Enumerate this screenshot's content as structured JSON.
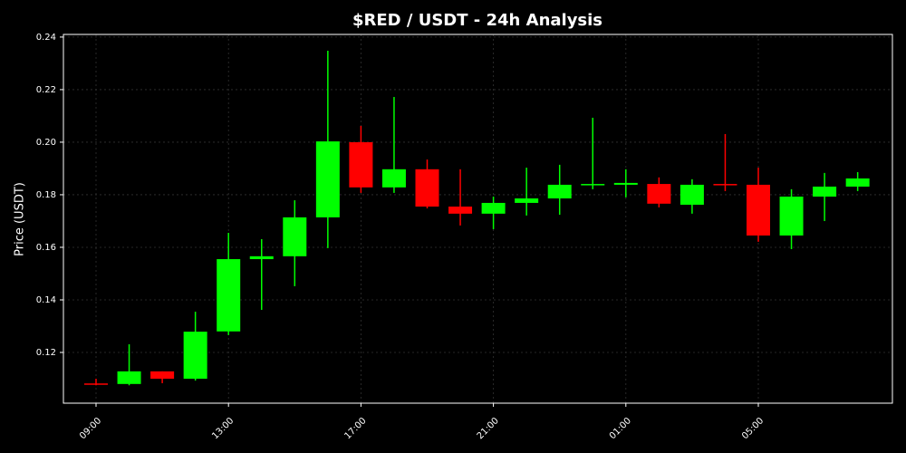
{
  "chart_data": {
    "type": "candlestick",
    "title": "$RED / USDT - 24h Analysis",
    "y_label": "Price (USDT)",
    "categories": [
      "09:00",
      null,
      null,
      null,
      "13:00",
      null,
      null,
      null,
      "17:00",
      null,
      null,
      null,
      "21:00",
      null,
      null,
      null,
      "01:00",
      null,
      null,
      null,
      "05:00",
      null,
      null,
      null
    ],
    "open": [
      0.1082,
      0.108,
      0.1128,
      0.11,
      0.128,
      0.1555,
      0.1566,
      0.1714,
      0.2,
      0.1828,
      0.1897,
      0.1755,
      0.1728,
      0.1769,
      0.1786,
      0.1838,
      0.1838,
      0.1841,
      0.1762,
      0.1841,
      0.1838,
      0.1645,
      0.1793,
      0.1831
    ],
    "high": [
      0.11,
      0.1231,
      0.1128,
      0.1355,
      0.1655,
      0.1631,
      0.1779,
      0.2348,
      0.2062,
      0.2172,
      0.1934,
      0.1897,
      0.1793,
      0.1903,
      0.1914,
      0.2093,
      0.1897,
      0.1866,
      0.1859,
      0.2031,
      0.1903,
      0.1821,
      0.1883,
      0.1886
    ],
    "low": [
      0.1075,
      0.1075,
      0.1083,
      0.1093,
      0.1266,
      0.1362,
      0.1452,
      0.1597,
      0.1807,
      0.1807,
      0.1748,
      0.1683,
      0.1669,
      0.1721,
      0.1724,
      0.1821,
      0.179,
      0.1752,
      0.1728,
      0.1814,
      0.1621,
      0.1593,
      0.17,
      0.1814
    ],
    "close": [
      0.108,
      0.1128,
      0.11,
      0.1279,
      0.1555,
      0.1566,
      0.1714,
      0.2003,
      0.1828,
      0.1897,
      0.1755,
      0.1728,
      0.1769,
      0.1786,
      0.1838,
      0.1841,
      0.1845,
      0.1766,
      0.1838,
      0.1838,
      0.1645,
      0.1793,
      0.1831,
      0.1862
    ],
    "up_color": "#00ff00",
    "down_color": "#ff0000",
    "ylim": [
      0.1007,
      0.241
    ],
    "yticks": [
      0.12,
      0.14,
      0.16,
      0.18,
      {
        "value": 0.2,
        "label": "0.20"
      },
      0.22,
      0.24
    ],
    "grid": true
  }
}
